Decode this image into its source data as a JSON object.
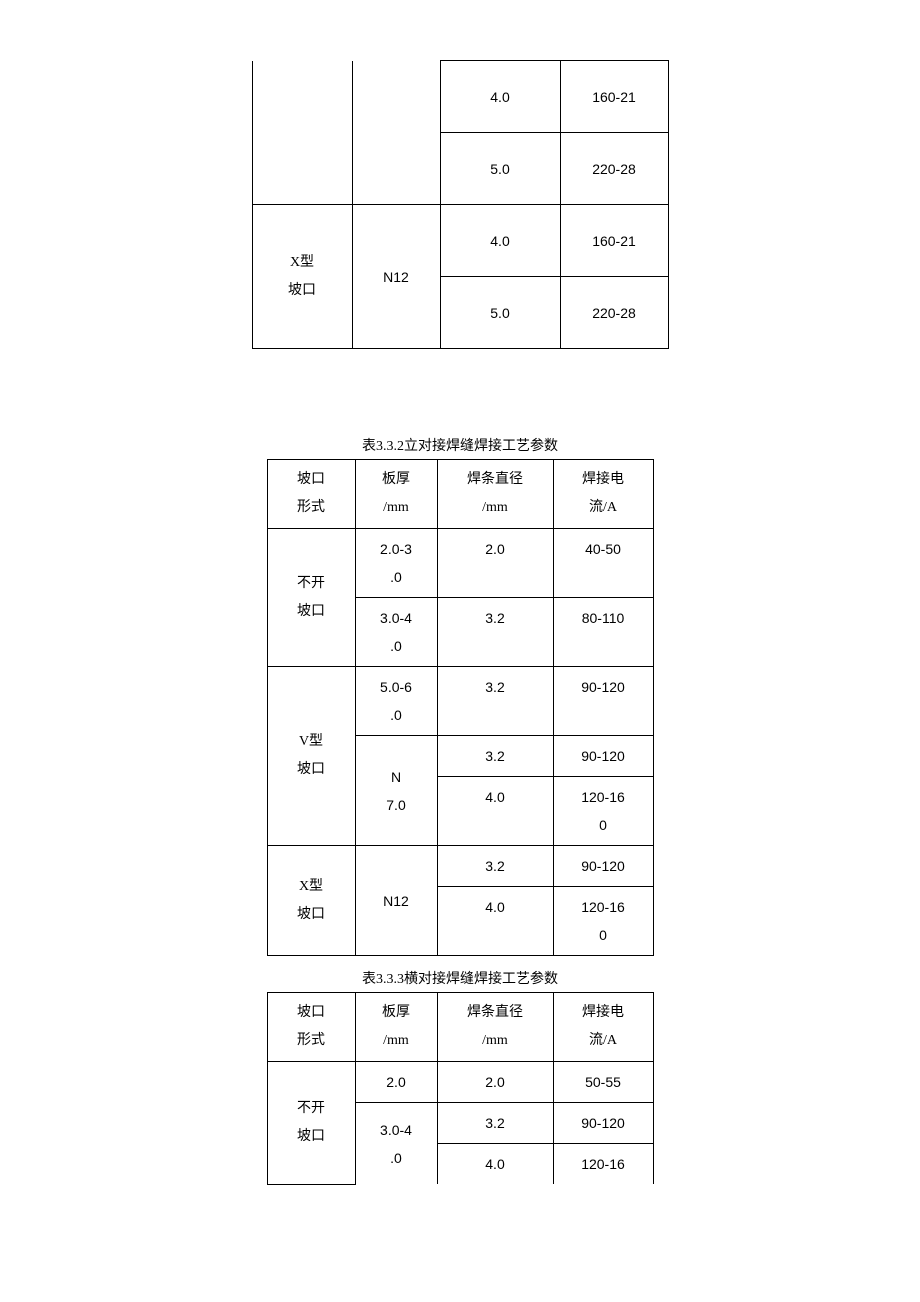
{
  "table1": {
    "rows": [
      {
        "col3": "4.0",
        "col4": "160-21"
      },
      {
        "col3": "5.0",
        "col4": "220-28"
      },
      {
        "col1": "X型\n坡口",
        "col2": "N12",
        "col3": "4.0",
        "col4": "160-21"
      },
      {
        "col3": "5.0",
        "col4": "220-28"
      }
    ]
  },
  "caption2": "表3.3.2立对接焊缝焊接工艺参数",
  "table2": {
    "header": {
      "c1": "坡口\n形式",
      "c2": "板厚\n/mm",
      "c3": "焊条直径\n/mm",
      "c4": "焊接电\n流/A"
    },
    "groups": [
      {
        "c1": "不开\n坡口",
        "rows": [
          {
            "c2": "2.0-3\n.0",
            "c3": "2.0",
            "c4": "40-50"
          },
          {
            "c2": "3.0-4\n.0",
            "c3": "3.2",
            "c4": "80-110"
          }
        ]
      },
      {
        "c1": "V型\n坡口",
        "rows": [
          {
            "c2": "5.0-6\n.0",
            "c3": "3.2",
            "c4": "90-120"
          },
          {
            "c2_span": "N\n7.0",
            "subrows": [
              {
                "c3": "3.2",
                "c4": "90-120"
              },
              {
                "c3": "4.0",
                "c4": "120-16\n0"
              }
            ]
          }
        ]
      },
      {
        "c1": "X型\n坡口",
        "c2_span": "N12",
        "subrows": [
          {
            "c3": "3.2",
            "c4": "90-120"
          },
          {
            "c3": "4.0",
            "c4": "120-16\n0"
          }
        ]
      }
    ]
  },
  "caption3": "表3.3.3横对接焊缝焊接工艺参数",
  "table3": {
    "header": {
      "c1": "坡口\n形式",
      "c2": "板厚\n/mm",
      "c3": "焊条直径\n/mm",
      "c4": "焊接电\n流/A"
    },
    "group": {
      "c1": "不开\n坡口",
      "rows": [
        {
          "c2": "2.0",
          "c3": "2.0",
          "c4": "50-55"
        },
        {
          "c2_span": "3.0-4\n.0",
          "subrows": [
            {
              "c3": "3.2",
              "c4": "90-120"
            },
            {
              "c3": "4.0",
              "c4": "120-16"
            }
          ]
        }
      ]
    }
  }
}
